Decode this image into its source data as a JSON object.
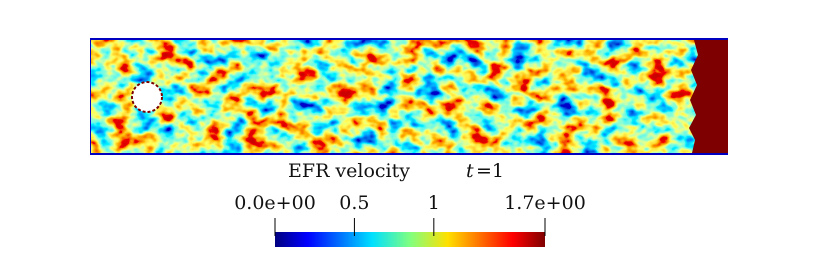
{
  "plot": {
    "title": "EFR velocity",
    "time_symbol": "t",
    "time_value": "=1"
  },
  "colorbar": {
    "range": [
      0,
      1.7
    ],
    "ticks": [
      {
        "value": 0,
        "label": "0.0e+00"
      },
      0.5,
      1,
      {
        "value": 1.7,
        "label": "1.7e+00"
      }
    ]
  }
}
